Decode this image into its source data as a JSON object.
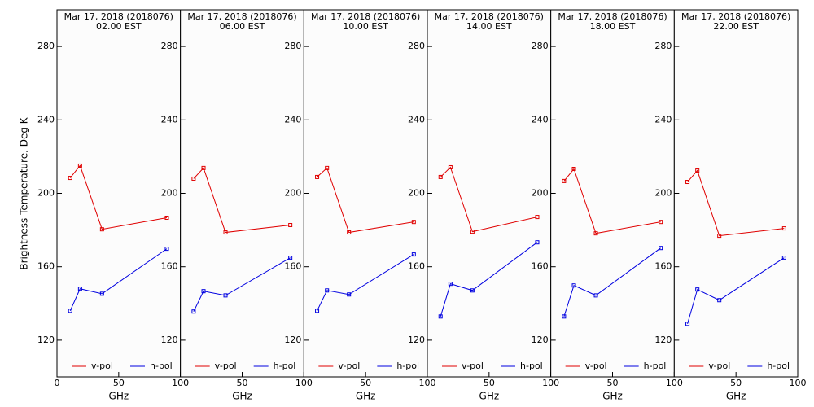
{
  "chart_data": [
    {
      "type": "line",
      "title": "Mar 17, 2018 (2018076)",
      "subtitle": "02.00 EST",
      "y_label": "Brightness Temperature, Deg K",
      "x_label": "GHz",
      "x": [
        10.7,
        18.7,
        36.5,
        89
      ],
      "xlim": [
        0,
        100
      ],
      "xticks": [
        0,
        50,
        100
      ],
      "ylim": [
        100,
        300
      ],
      "yticks": [
        120,
        160,
        200,
        240,
        280
      ],
      "series": [
        {
          "name": "v-pol",
          "color": "#e00000",
          "values": [
            208.4,
            215.1,
            180.4,
            186.7
          ]
        },
        {
          "name": "h-pol",
          "color": "#0000e0",
          "values": [
            136.0,
            148.0,
            145.3,
            169.8
          ]
        }
      ]
    },
    {
      "type": "line",
      "title": "Mar 17, 2018 (2018076)",
      "subtitle": "06.00 EST",
      "x_label": "GHz",
      "x": [
        10.7,
        18.7,
        36.5,
        89
      ],
      "xlim": [
        0,
        100
      ],
      "xticks": [
        50,
        100
      ],
      "ylim": [
        100,
        300
      ],
      "yticks": [
        120,
        160,
        200,
        240,
        280
      ],
      "series": [
        {
          "name": "v-pol",
          "color": "#e00000",
          "values": [
            208.0,
            213.8,
            178.7,
            182.7
          ]
        },
        {
          "name": "h-pol",
          "color": "#0000e0",
          "values": [
            135.6,
            146.7,
            144.4,
            164.9
          ]
        }
      ]
    },
    {
      "type": "line",
      "title": "Mar 17, 2018 (2018076)",
      "subtitle": "10.00 EST",
      "x_label": "GHz",
      "x": [
        10.7,
        18.7,
        36.5,
        89
      ],
      "xlim": [
        0,
        100
      ],
      "xticks": [
        50,
        100
      ],
      "ylim": [
        100,
        300
      ],
      "yticks": [
        120,
        160,
        200,
        240,
        280
      ],
      "series": [
        {
          "name": "v-pol",
          "color": "#e00000",
          "values": [
            208.9,
            213.8,
            178.7,
            184.4
          ]
        },
        {
          "name": "h-pol",
          "color": "#0000e0",
          "values": [
            136.0,
            147.1,
            144.9,
            166.7
          ]
        }
      ]
    },
    {
      "type": "line",
      "title": "Mar 17, 2018 (2018076)",
      "subtitle": "14.00 EST",
      "x_label": "GHz",
      "x": [
        10.7,
        18.7,
        36.5,
        89
      ],
      "xlim": [
        0,
        100
      ],
      "xticks": [
        50,
        100
      ],
      "ylim": [
        100,
        300
      ],
      "yticks": [
        120,
        160,
        200,
        240,
        280
      ],
      "series": [
        {
          "name": "v-pol",
          "color": "#e00000",
          "values": [
            208.9,
            214.2,
            179.1,
            187.1
          ]
        },
        {
          "name": "h-pol",
          "color": "#0000e0",
          "values": [
            132.9,
            150.7,
            147.1,
            173.3
          ]
        }
      ]
    },
    {
      "type": "line",
      "title": "Mar 17, 2018 (2018076)",
      "subtitle": "18.00 EST",
      "x_label": "GHz",
      "x": [
        10.7,
        18.7,
        36.5,
        89
      ],
      "xlim": [
        0,
        100
      ],
      "xticks": [
        50,
        100
      ],
      "ylim": [
        100,
        300
      ],
      "yticks": [
        120,
        160,
        200,
        240,
        280
      ],
      "series": [
        {
          "name": "v-pol",
          "color": "#e00000",
          "values": [
            206.7,
            213.3,
            178.2,
            184.4
          ]
        },
        {
          "name": "h-pol",
          "color": "#0000e0",
          "values": [
            132.9,
            149.8,
            144.4,
            170.2
          ]
        }
      ]
    },
    {
      "type": "line",
      "title": "Mar 17, 2018 (2018076)",
      "subtitle": "22.00 EST",
      "x_label": "GHz",
      "x": [
        10.7,
        18.7,
        36.5,
        89
      ],
      "xlim": [
        0,
        100
      ],
      "xticks": [
        50,
        100
      ],
      "ylim": [
        100,
        300
      ],
      "yticks": [
        120,
        160,
        200,
        240,
        280
      ],
      "series": [
        {
          "name": "v-pol",
          "color": "#e00000",
          "values": [
            206.2,
            212.4,
            176.9,
            180.9
          ]
        },
        {
          "name": "h-pol",
          "color": "#0000e0",
          "values": [
            128.9,
            147.6,
            141.8,
            164.9
          ]
        }
      ]
    }
  ]
}
